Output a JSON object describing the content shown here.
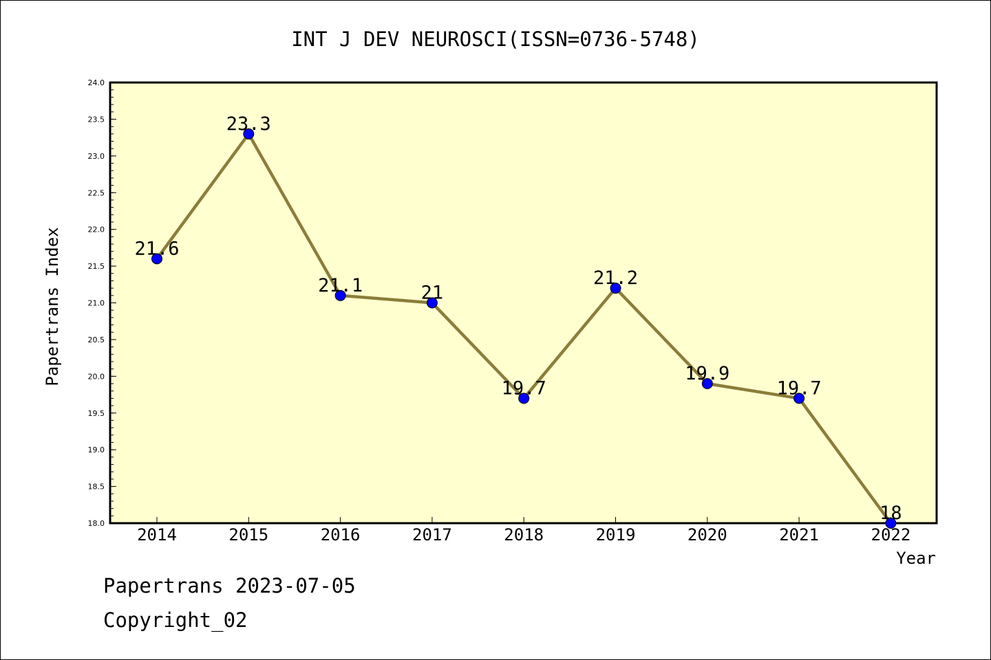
{
  "chart_data": {
    "type": "line",
    "title": "INT J DEV NEUROSCI(ISSN=0736-5748)",
    "xlabel": "Year",
    "ylabel": "Papertrans Index",
    "categories": [
      "2014",
      "2015",
      "2016",
      "2017",
      "2018",
      "2019",
      "2020",
      "2021",
      "2022"
    ],
    "series": [
      {
        "values": [
          21.6,
          23.3,
          21.1,
          21.0,
          19.7,
          21.2,
          19.9,
          19.7,
          18.0
        ],
        "labels": [
          "21.6",
          "23.3",
          "21.1",
          "21",
          "19.7",
          "21.2",
          "19.9",
          "19.7",
          "18"
        ]
      }
    ],
    "ylim": [
      18.0,
      24.0
    ],
    "yticks": [
      "18.0",
      "18.5",
      "19.0",
      "19.5",
      "20.0",
      "20.5",
      "21.0",
      "21.5",
      "22.0",
      "22.5",
      "23.0",
      "23.5",
      "24.0"
    ],
    "grid": false,
    "colors": {
      "plot_background": "#ffffd0",
      "line": "#8b7d3a",
      "marker": "#0000ff"
    }
  },
  "footer": {
    "line1": "Papertrans 2023-07-05",
    "line2": "Copyright_02"
  }
}
